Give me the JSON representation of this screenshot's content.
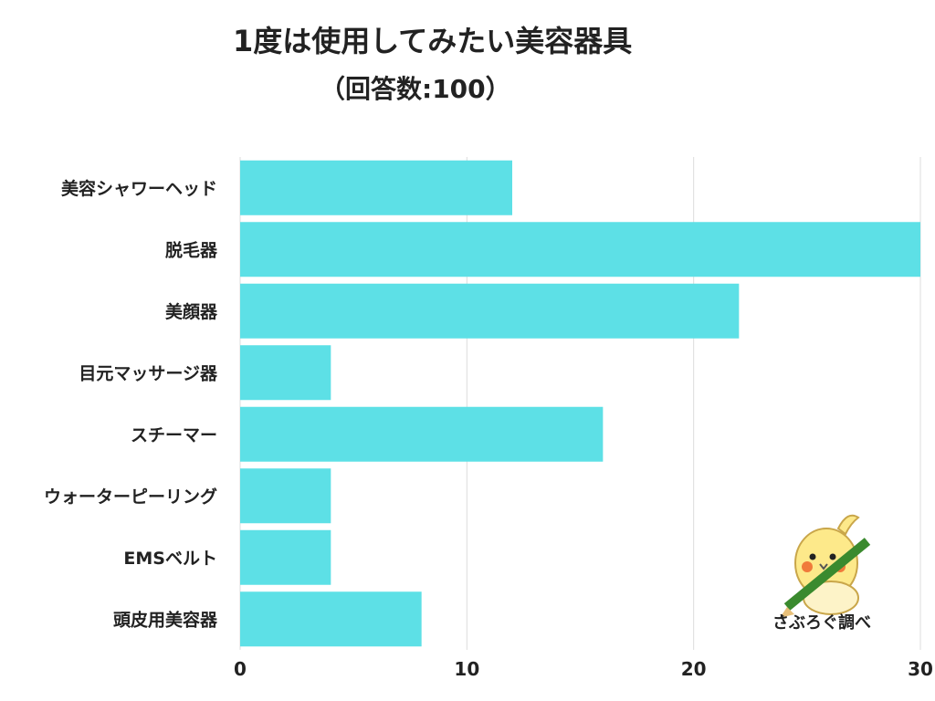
{
  "chart_data": {
    "type": "bar",
    "orientation": "horizontal",
    "title": "1度は使用してみたい美容器具",
    "subtitle": "（回答数:100）",
    "categories": [
      "美容シャワーヘッド",
      "脱毛器",
      "美顔器",
      "目元マッサージ器",
      "スチーマー",
      "ウォーターピーリング",
      "EMSベルト",
      "頭皮用美容器"
    ],
    "values": [
      12,
      30,
      22,
      4,
      16,
      4,
      4,
      8
    ],
    "xlim": [
      0,
      30
    ],
    "xticks": [
      0,
      10,
      20,
      30
    ],
    "grid": "vertical",
    "bar_color": "#5de0e6"
  },
  "watermark": {
    "caption": "さぶろぐ調べ",
    "icon": "bird-mascot-with-pencil"
  }
}
